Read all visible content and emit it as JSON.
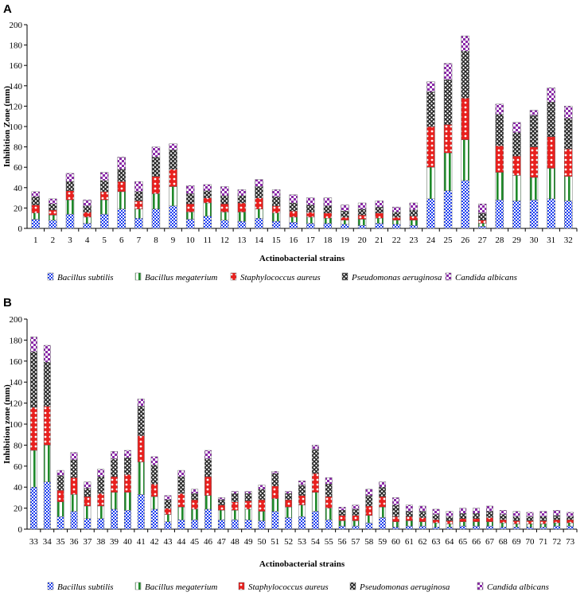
{
  "colors": {
    "Bacillus subtilis": "#1a3cf0",
    "Bacillus megaterium": "#1f8a2a",
    "Staphylococcus aureus": "#e8201e",
    "Pseudomonas aeruginosa": "#2a2a2a",
    "Candida albicans": "#8a2aa8"
  },
  "chart_data": [
    {
      "panel": "A",
      "type": "bar",
      "stacked": true,
      "xlabel": "Actinobacterial strains",
      "ylabel": "Inhibition Zone (mm)",
      "ylim": [
        0,
        200
      ],
      "yticks": [
        0,
        20,
        40,
        60,
        80,
        100,
        120,
        140,
        160,
        180,
        200
      ],
      "grid": false,
      "legend_position": "bottom",
      "categories": [
        "1",
        "2",
        "3",
        "4",
        "5",
        "6",
        "7",
        "8",
        "9",
        "10",
        "11",
        "12",
        "13",
        "14",
        "15",
        "16",
        "17",
        "18",
        "19",
        "20",
        "21",
        "22",
        "23",
        "24",
        "25",
        "26",
        "27",
        "28",
        "29",
        "30",
        "31",
        "32"
      ],
      "series": [
        {
          "name": "Bacillus subtilis",
          "values": [
            9,
            8,
            14,
            5,
            14,
            19,
            10,
            19,
            22,
            9,
            12,
            8,
            7,
            10,
            7,
            6,
            5,
            5,
            4,
            3,
            5,
            4,
            3,
            29,
            37,
            47,
            2,
            28,
            27,
            28,
            29,
            27
          ]
        },
        {
          "name": "Bacillus megaterium",
          "values": [
            6,
            5,
            14,
            6,
            14,
            17,
            9,
            15,
            19,
            7,
            13,
            8,
            9,
            9,
            8,
            5,
            6,
            5,
            4,
            6,
            5,
            4,
            5,
            31,
            37,
            40,
            3,
            27,
            25,
            22,
            30,
            24
          ]
        },
        {
          "name": "Staphylococcus aureus",
          "values": [
            8,
            5,
            9,
            5,
            8,
            10,
            8,
            17,
            17,
            8,
            5,
            8,
            9,
            11,
            7,
            6,
            5,
            5,
            3,
            4,
            5,
            3,
            4,
            40,
            28,
            41,
            3,
            26,
            19,
            30,
            31,
            27
          ]
        },
        {
          "name": "Pseudomonas aeruginosa",
          "values": [
            8,
            6,
            9,
            6,
            11,
            12,
            9,
            19,
            19,
            10,
            7,
            8,
            7,
            11,
            9,
            8,
            7,
            7,
            6,
            6,
            6,
            5,
            6,
            34,
            44,
            46,
            7,
            31,
            23,
            31,
            34,
            30
          ]
        },
        {
          "name": "Candida albicans",
          "values": [
            5,
            5,
            8,
            6,
            8,
            12,
            10,
            10,
            6,
            8,
            6,
            9,
            6,
            7,
            7,
            8,
            7,
            8,
            6,
            6,
            6,
            5,
            7,
            10,
            16,
            15,
            9,
            10,
            10,
            5,
            14,
            12
          ]
        }
      ]
    },
    {
      "panel": "B",
      "type": "bar",
      "stacked": true,
      "xlabel": "Actinobacterial strains",
      "ylabel": "Inhibition zone (mm)",
      "ylim": [
        0,
        200
      ],
      "yticks": [
        0,
        20,
        40,
        60,
        80,
        100,
        120,
        140,
        160,
        180,
        200
      ],
      "grid": false,
      "legend_position": "bottom",
      "categories": [
        "33",
        "34",
        "35",
        "36",
        "37",
        "38",
        "39",
        "40",
        "41",
        "42",
        "43",
        "44",
        "45",
        "46",
        "47",
        "48",
        "49",
        "50",
        "51",
        "52",
        "53",
        "54",
        "55",
        "56",
        "57",
        "58",
        "59",
        "60",
        "61",
        "62",
        "63",
        "64",
        "65",
        "66",
        "67",
        "68",
        "69",
        "70",
        "71",
        "72",
        "73"
      ],
      "series": [
        {
          "name": "Bacillus subtilis",
          "values": [
            40,
            45,
            12,
            17,
            10,
            10,
            19,
            18,
            33,
            19,
            7,
            9,
            9,
            19,
            9,
            9,
            9,
            8,
            17,
            11,
            12,
            17,
            9,
            3,
            3,
            6,
            11,
            2,
            3,
            3,
            2,
            2,
            3,
            3,
            3,
            2,
            2,
            2,
            2,
            3,
            3
          ]
        },
        {
          "name": "Bacillus megaterium",
          "values": [
            35,
            35,
            14,
            16,
            12,
            12,
            16,
            17,
            31,
            12,
            7,
            12,
            10,
            13,
            9,
            9,
            10,
            9,
            12,
            10,
            11,
            18,
            11,
            5,
            5,
            7,
            10,
            5,
            5,
            4,
            4,
            3,
            4,
            4,
            4,
            4,
            3,
            3,
            3,
            3,
            3
          ]
        },
        {
          "name": "Staphylococcus aureus",
          "values": [
            41,
            37,
            11,
            16,
            9,
            12,
            15,
            17,
            25,
            12,
            6,
            13,
            9,
            18,
            5,
            8,
            8,
            11,
            12,
            7,
            9,
            18,
            11,
            5,
            5,
            9,
            10,
            5,
            4,
            4,
            3,
            3,
            3,
            3,
            4,
            3,
            3,
            3,
            3,
            3,
            3
          ]
        },
        {
          "name": "Pseudomonas aeruginosa",
          "values": [
            53,
            42,
            14,
            17,
            8,
            16,
            17,
            16,
            28,
            18,
            8,
            16,
            6,
            17,
            5,
            8,
            7,
            10,
            12,
            6,
            10,
            23,
            12,
            5,
            6,
            10,
            9,
            11,
            5,
            6,
            5,
            4,
            5,
            5,
            6,
            5,
            4,
            4,
            4,
            4,
            3
          ]
        },
        {
          "name": "Candida albicans",
          "values": [
            14,
            16,
            5,
            7,
            6,
            7,
            7,
            7,
            7,
            8,
            4,
            6,
            4,
            8,
            2,
            2,
            2,
            4,
            2,
            2,
            4,
            4,
            6,
            3,
            4,
            6,
            5,
            7,
            6,
            5,
            5,
            5,
            5,
            5,
            5,
            4,
            5,
            4,
            5,
            5,
            4
          ]
        }
      ]
    }
  ]
}
